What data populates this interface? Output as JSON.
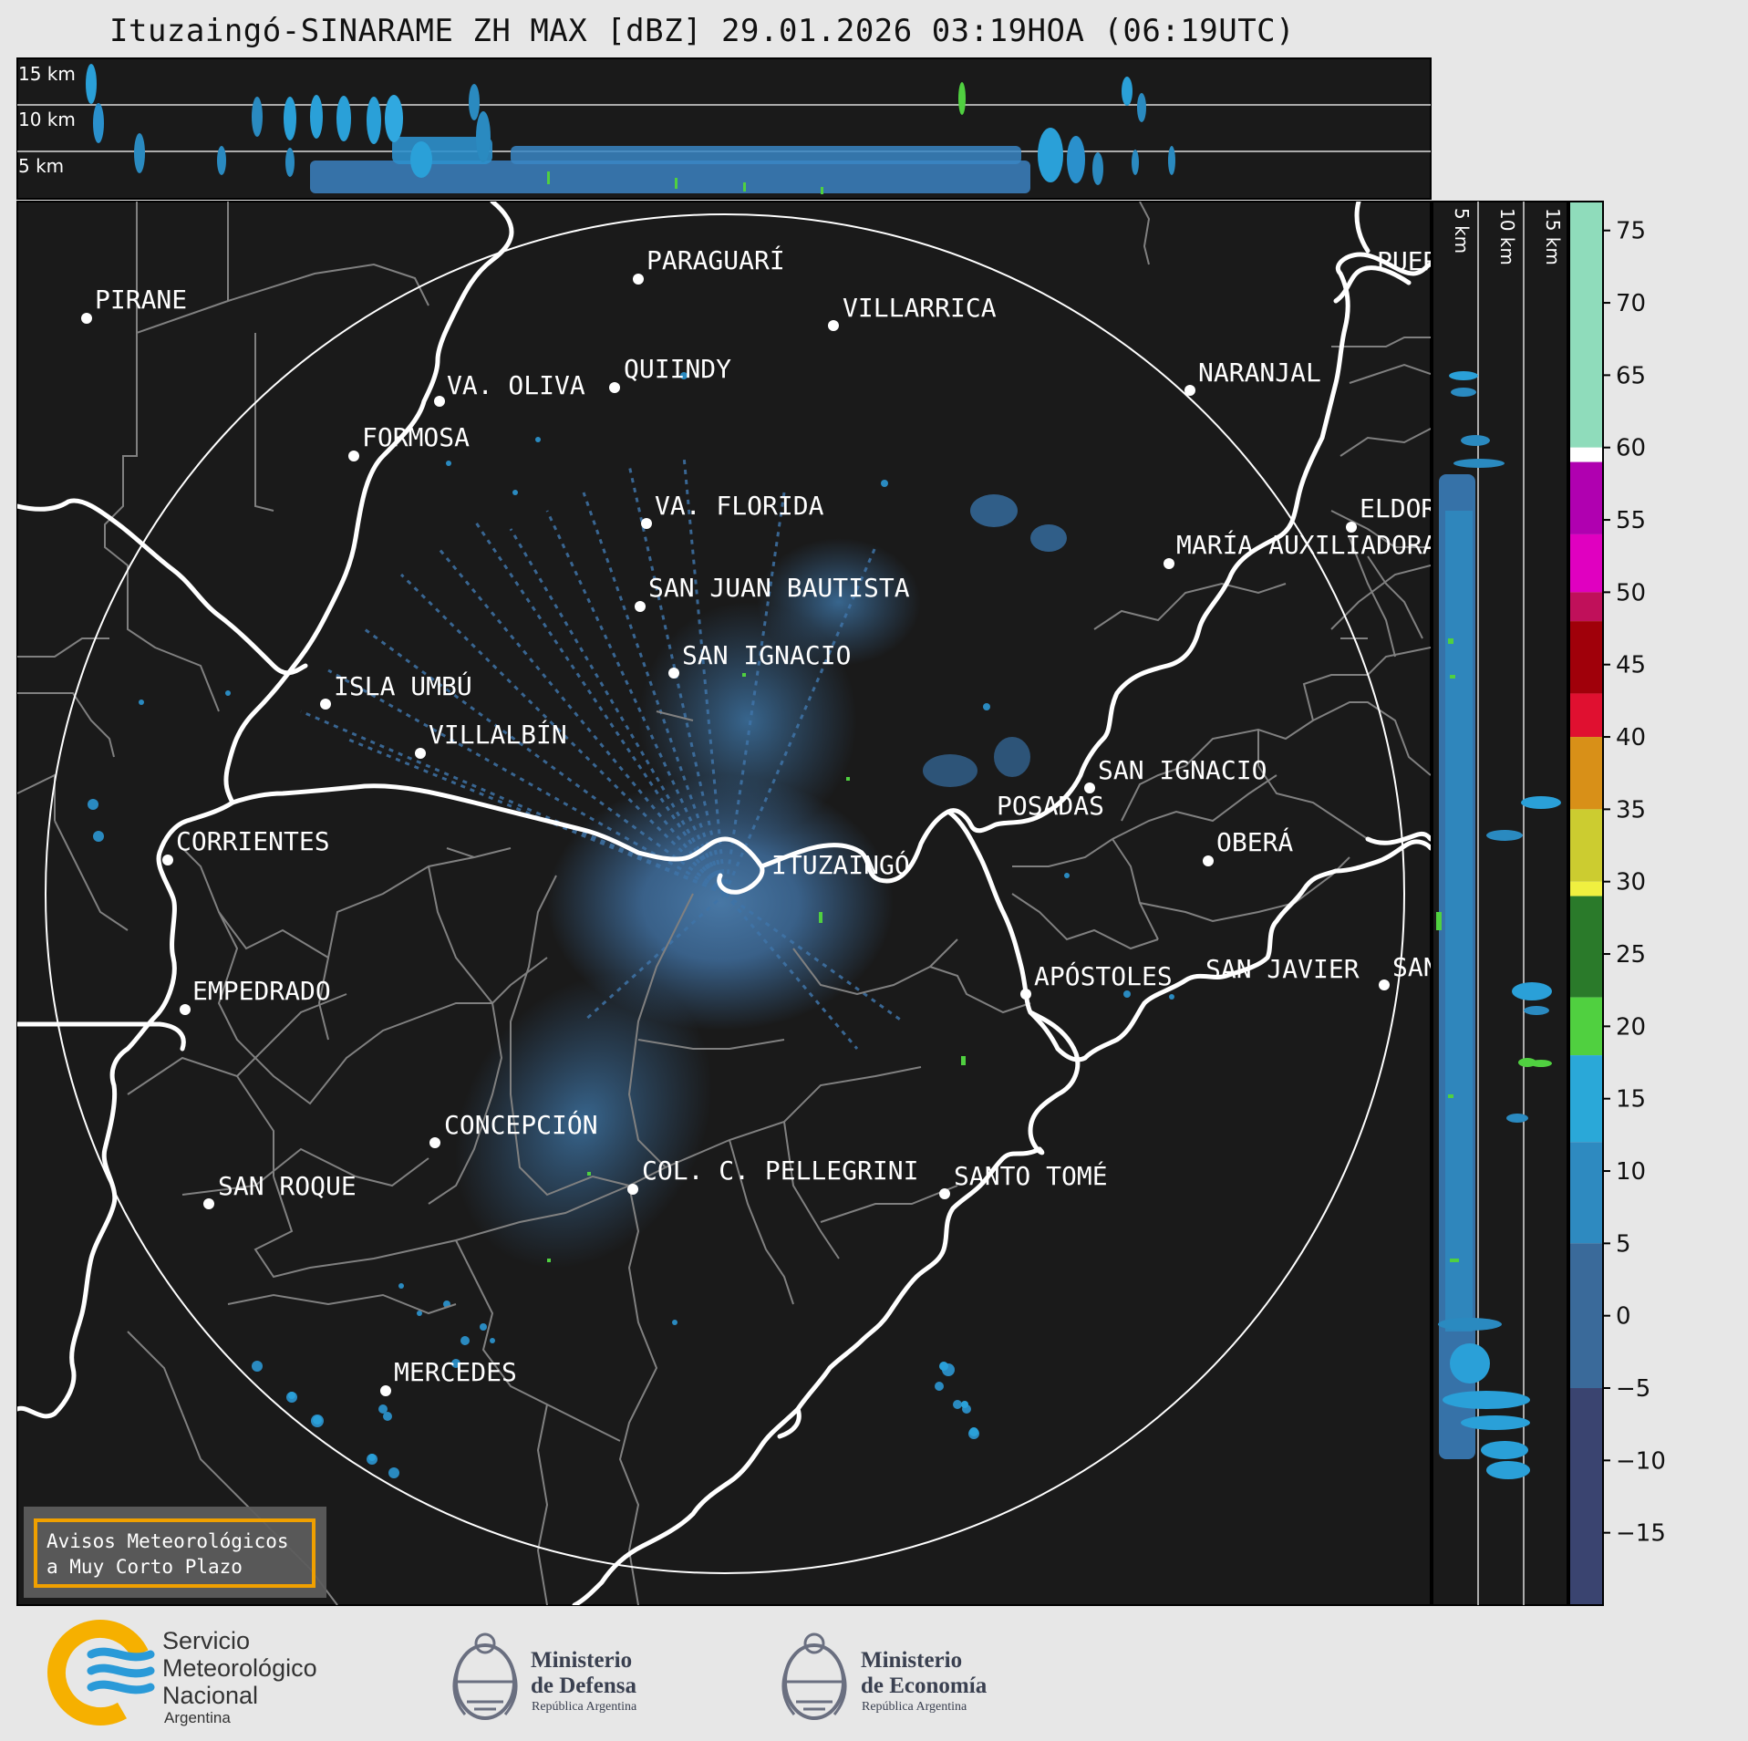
{
  "title": "Ituzaingó-SINARAME ZH MAX [dBZ] 29.01.2026 03:19HOA (06:19UTC)",
  "top_panel": {
    "height_labels": [
      "15 km",
      "10 km",
      "5 km"
    ]
  },
  "side_panel": {
    "height_labels": [
      "5 km",
      "10 km",
      "15 km"
    ]
  },
  "colorbar": {
    "unit": "dBZ",
    "ticks": [
      "75",
      "70",
      "65",
      "60",
      "55",
      "50",
      "45",
      "40",
      "35",
      "30",
      "25",
      "20",
      "15",
      "10",
      "5",
      "0",
      "−5",
      "−10",
      "−15"
    ],
    "tick_values": [
      75,
      70,
      65,
      60,
      55,
      50,
      45,
      40,
      35,
      30,
      25,
      20,
      15,
      10,
      5,
      0,
      -5,
      -10,
      -15
    ],
    "range": [
      -20,
      77
    ],
    "segments": [
      {
        "from": 60,
        "to": 77,
        "color": "#8fdcbb"
      },
      {
        "from": 59,
        "to": 60,
        "color": "#ffffff"
      },
      {
        "from": 54,
        "to": 59,
        "color": "#b000b0"
      },
      {
        "from": 50,
        "to": 54,
        "color": "#e000c0"
      },
      {
        "from": 48,
        "to": 50,
        "color": "#c0105a"
      },
      {
        "from": 43,
        "to": 48,
        "color": "#a0000a"
      },
      {
        "from": 40,
        "to": 43,
        "color": "#e01030"
      },
      {
        "from": 35,
        "to": 40,
        "color": "#d89018"
      },
      {
        "from": 30,
        "to": 35,
        "color": "#cccc30"
      },
      {
        "from": 29,
        "to": 30,
        "color": "#f0f040"
      },
      {
        "from": 22,
        "to": 29,
        "color": "#2a7a2a"
      },
      {
        "from": 18,
        "to": 22,
        "color": "#50d040"
      },
      {
        "from": 12,
        "to": 18,
        "color": "#2aa8d8"
      },
      {
        "from": 5,
        "to": 12,
        "color": "#2e8ac0"
      },
      {
        "from": -5,
        "to": 5,
        "color": "#3a6a9a"
      },
      {
        "from": -20,
        "to": -5,
        "color": "#3a4470"
      }
    ]
  },
  "cities": [
    {
      "name": "PARAGUARÍ"
    },
    {
      "name": "VILLARRICA"
    },
    {
      "name": "PIRANE"
    },
    {
      "name": "QUIINDY"
    },
    {
      "name": "VA. OLIVA"
    },
    {
      "name": "NARANJAL"
    },
    {
      "name": "FORMOSA"
    },
    {
      "name": "VA. FLORIDA"
    },
    {
      "name": "ELDORADO"
    },
    {
      "name": "MARÍA AUXILIADORA"
    },
    {
      "name": "SAN JUAN BAUTISTA"
    },
    {
      "name": "SAN IGNACIO"
    },
    {
      "name": "ISLA UMBÚ"
    },
    {
      "name": "VILLALBÍN"
    },
    {
      "name": "SAN IGNACIO"
    },
    {
      "name": "POSADAS"
    },
    {
      "name": "CORRIENTES"
    },
    {
      "name": "ITUZAINGÓ"
    },
    {
      "name": "OBERÁ"
    },
    {
      "name": "EMPEDRADO"
    },
    {
      "name": "APÓSTOLES"
    },
    {
      "name": "SAN JAVIER"
    },
    {
      "name": "SAN"
    },
    {
      "name": "CONCEPCIÓN"
    },
    {
      "name": "COL. C. PELLEGRINI"
    },
    {
      "name": "SANTO TOMÉ"
    },
    {
      "name": "SAN ROQUE"
    },
    {
      "name": "MERCEDES"
    },
    {
      "name": "PUERTO"
    }
  ],
  "warning_box": {
    "line1": "Avisos Meteorológicos",
    "line2": "a Muy Corto Plazo",
    "border_color": "#f0a000"
  },
  "logos": {
    "smn": {
      "line1": "Servicio",
      "line2": "Meteorológico",
      "line3": "Nacional",
      "line4": "Argentina"
    },
    "defensa": {
      "line1": "Ministerio",
      "line2": "de Defensa",
      "line3": "República Argentina"
    },
    "economia": {
      "line1": "Ministerio",
      "line2": "de Economía",
      "line3": "República Argentina"
    }
  },
  "colors": {
    "map_bg": "#1a1a1a",
    "page_bg": "#e7e7e7",
    "river": "#ffffff",
    "border": "#808080"
  }
}
